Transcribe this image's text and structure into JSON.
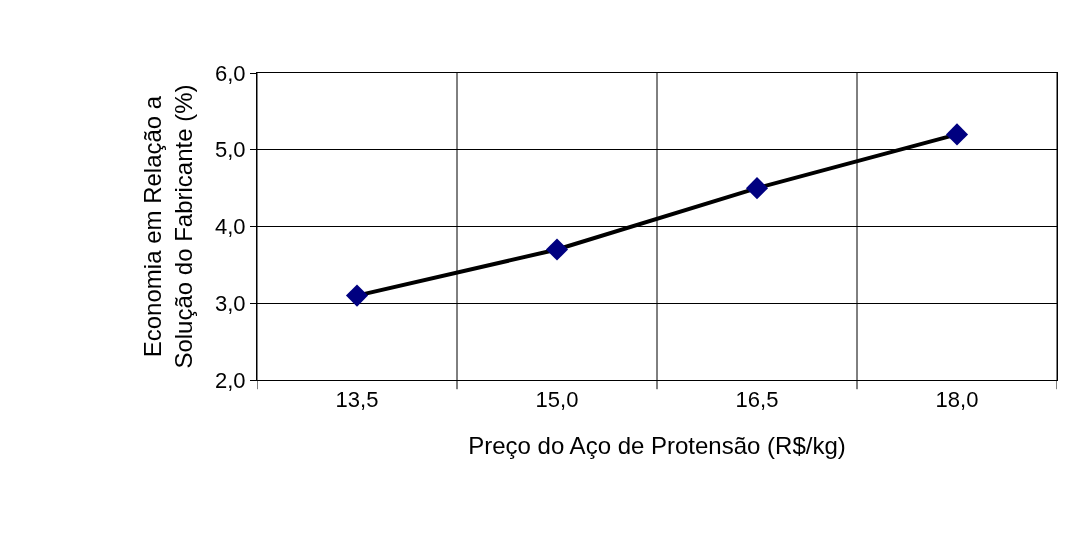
{
  "chart_data": {
    "type": "line",
    "xlabel": "Preço do Aço de Protensão (R$/kg)",
    "ylabel": "Economia em Relação a\nSolução do Fabricante (%)",
    "categories": [
      "13,5",
      "15,0",
      "16,5",
      "18,0"
    ],
    "series": [
      {
        "color": "#000000",
        "colors": [
          "#000080",
          "#000080",
          "#000080",
          "#000080"
        ],
        "values": [
          3.1,
          3.7,
          4.5,
          5.2
        ]
      }
    ],
    "ylim": [
      2,
      6
    ],
    "yticks": [
      {
        "value": 2,
        "label": "2,0"
      },
      {
        "value": 3,
        "label": "3,0"
      },
      {
        "value": 4,
        "label": "4,0"
      },
      {
        "value": 5,
        "label": "5,0"
      },
      {
        "value": 6,
        "label": "6,0"
      }
    ],
    "grid": true,
    "marker": "diamond",
    "line_style": "solid"
  }
}
